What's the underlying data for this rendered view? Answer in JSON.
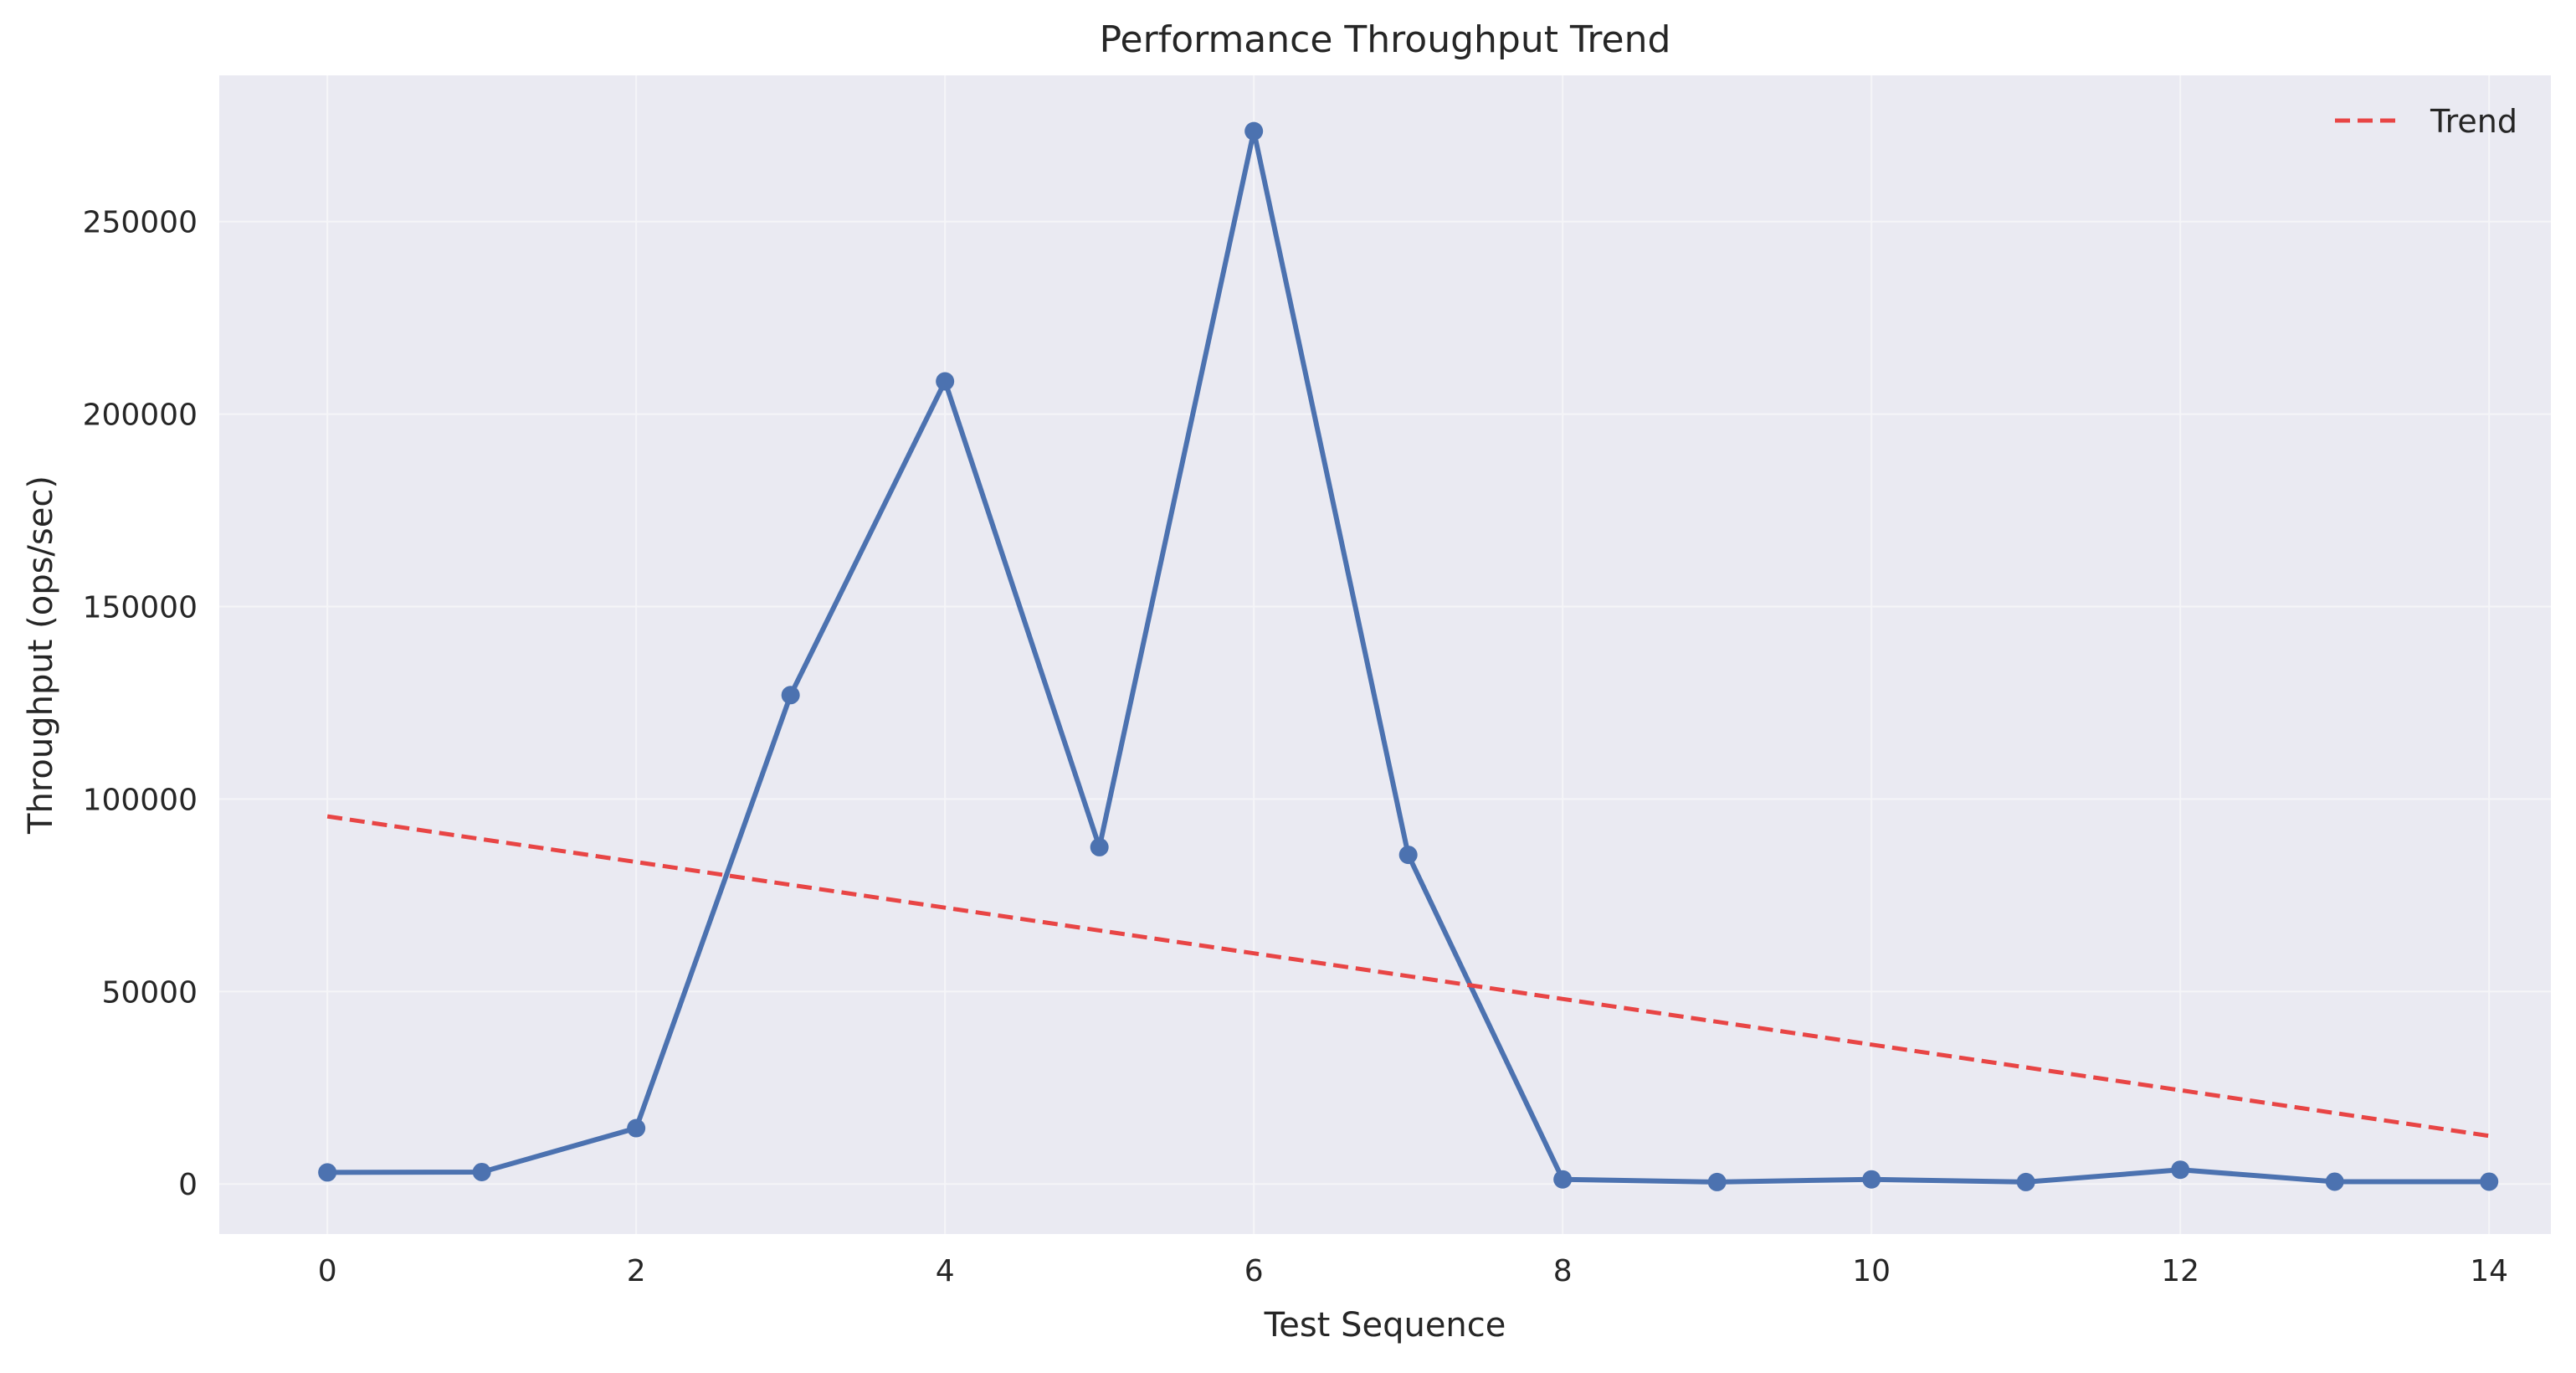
{
  "chart_data": {
    "type": "line",
    "title": "Performance Throughput Trend",
    "xlabel": "Test Sequence",
    "ylabel": "Throughput (ops/sec)",
    "xlim": [
      -0.7,
      14.4
    ],
    "ylim": [
      -13000,
      288000
    ],
    "xticks": [
      0,
      2,
      4,
      6,
      8,
      10,
      12,
      14
    ],
    "yticks": [
      0,
      50000,
      100000,
      150000,
      200000,
      250000
    ],
    "grid": true,
    "legend_position": "top-right",
    "series": [
      {
        "values": [
          {
            "x": 0,
            "y": 3000
          },
          {
            "x": 1,
            "y": 3100
          },
          {
            "x": 2,
            "y": 14500
          },
          {
            "x": 3,
            "y": 127000
          },
          {
            "x": 4,
            "y": 208500
          },
          {
            "x": 5,
            "y": 87500
          },
          {
            "x": 6,
            "y": 273500
          },
          {
            "x": 7,
            "y": 85500
          },
          {
            "x": 8,
            "y": 1200
          },
          {
            "x": 9,
            "y": 500
          },
          {
            "x": 10,
            "y": 1200
          },
          {
            "x": 11,
            "y": 500
          },
          {
            "x": 12,
            "y": 3700
          },
          {
            "x": 13,
            "y": 600
          },
          {
            "x": 14,
            "y": 600
          }
        ],
        "color": "#4c72b0",
        "markers": true
      },
      {
        "name": "Trend",
        "values": [
          {
            "x": 0,
            "y": 95500
          },
          {
            "x": 14,
            "y": 12500
          }
        ],
        "color": "#e84545",
        "dashed": true
      }
    ],
    "colors": {
      "plot_background": "#eaeaf2",
      "grid": "#f5f5f8"
    }
  }
}
